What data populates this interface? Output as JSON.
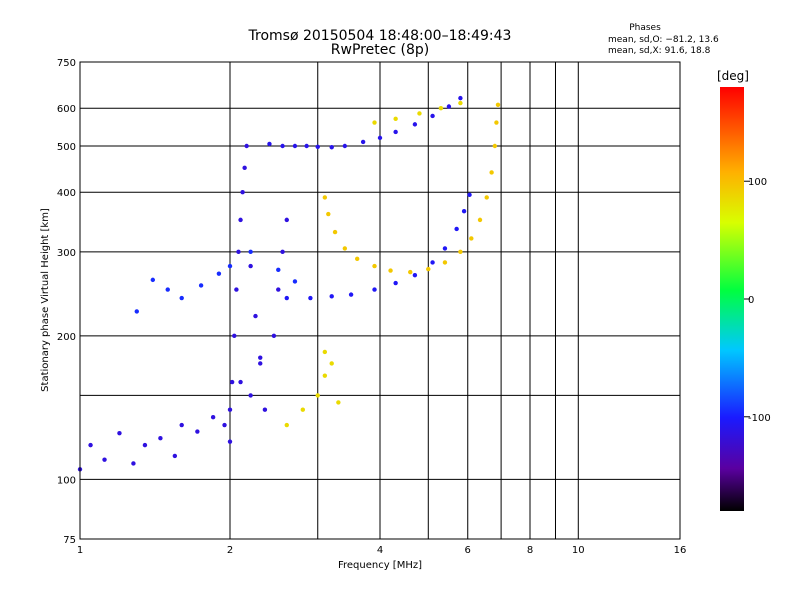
{
  "chart_data": {
    "type": "scatter",
    "title": "Tromsø 20150504 18:48:00–18:49:43",
    "subtitle": "RwPretec (8p)",
    "xlabel": "Frequency [MHz]",
    "ylabel": "Stationary phase Virtual Height [km]",
    "x_scale": "log",
    "y_scale": "log",
    "xlim": [
      1,
      16
    ],
    "ylim": [
      75,
      750
    ],
    "x_ticks": [
      1,
      2,
      4,
      6,
      8,
      10,
      16
    ],
    "x_minor_grid": [
      3,
      5,
      7,
      9
    ],
    "y_ticks": [
      75,
      100,
      200,
      300,
      400,
      500,
      600,
      750
    ],
    "y_minor_grid": [
      150
    ],
    "grid": true,
    "info": {
      "header": "Phases",
      "line1": "mean, sd,O: −81.2, 13.6",
      "line2": "mean, sd,X:  91.6, 18.8"
    },
    "colorbar": {
      "label": "[deg]",
      "range": [
        -180,
        180
      ],
      "ticks": [
        100,
        0,
        -100
      ],
      "placement": "right"
    },
    "series": [
      {
        "kind": "F-layer O-mode upper trace",
        "phase": -110,
        "points": [
          [
            2.4,
            505
          ],
          [
            2.55,
            500
          ],
          [
            2.7,
            500
          ],
          [
            2.85,
            500
          ],
          [
            3.0,
            498
          ],
          [
            3.2,
            497
          ],
          [
            3.4,
            500
          ],
          [
            3.7,
            510
          ],
          [
            4.0,
            520
          ],
          [
            4.3,
            535
          ],
          [
            4.7,
            555
          ],
          [
            5.1,
            578
          ],
          [
            5.5,
            605
          ],
          [
            5.8,
            630
          ]
        ]
      },
      {
        "kind": "F-layer O-mode lower trace",
        "phase": -105,
        "points": [
          [
            2.6,
            240
          ],
          [
            2.9,
            240
          ],
          [
            3.2,
            242
          ],
          [
            3.5,
            244
          ],
          [
            3.9,
            250
          ],
          [
            4.3,
            258
          ],
          [
            4.7,
            268
          ],
          [
            5.1,
            285
          ],
          [
            5.4,
            305
          ],
          [
            5.7,
            335
          ],
          [
            5.9,
            365
          ],
          [
            6.05,
            395
          ]
        ]
      },
      {
        "kind": "F-layer X-mode lower trace",
        "phase": 95,
        "points": [
          [
            3.1,
            390
          ],
          [
            3.15,
            360
          ],
          [
            3.25,
            330
          ],
          [
            3.4,
            305
          ],
          [
            3.6,
            290
          ],
          [
            3.9,
            280
          ],
          [
            4.2,
            274
          ],
          [
            4.6,
            272
          ],
          [
            5.0,
            276
          ],
          [
            5.4,
            285
          ],
          [
            5.8,
            300
          ],
          [
            6.1,
            320
          ],
          [
            6.35,
            350
          ],
          [
            6.55,
            390
          ],
          [
            6.7,
            440
          ],
          [
            6.8,
            500
          ],
          [
            6.85,
            560
          ],
          [
            6.9,
            610
          ]
        ]
      },
      {
        "kind": "F-layer X-mode upper trace",
        "phase": 85,
        "points": [
          [
            3.9,
            560
          ],
          [
            4.3,
            570
          ],
          [
            4.8,
            585
          ],
          [
            5.3,
            600
          ],
          [
            5.8,
            615
          ]
        ]
      },
      {
        "kind": "E/F1 spread echoes",
        "phase": -115,
        "points": [
          [
            1.0,
            105
          ],
          [
            1.05,
            118
          ],
          [
            1.12,
            110
          ],
          [
            1.2,
            125
          ],
          [
            1.28,
            108
          ],
          [
            1.35,
            118
          ],
          [
            1.45,
            122
          ],
          [
            1.55,
            112
          ],
          [
            1.6,
            130
          ],
          [
            1.72,
            126
          ],
          [
            1.85,
            135
          ],
          [
            1.95,
            130
          ],
          [
            2.0,
            140
          ],
          [
            2.1,
            160
          ],
          [
            2.2,
            150
          ],
          [
            2.3,
            175
          ]
        ]
      },
      {
        "kind": "E/F1 spread echoes (scattered)",
        "phase": -95,
        "points": [
          [
            1.3,
            225
          ],
          [
            1.4,
            262
          ],
          [
            1.5,
            250
          ],
          [
            1.6,
            240
          ],
          [
            1.75,
            255
          ],
          [
            1.9,
            270
          ],
          [
            2.0,
            280
          ],
          [
            2.2,
            300
          ],
          [
            2.5,
            275
          ],
          [
            2.7,
            260
          ]
        ]
      },
      {
        "kind": "Vertical spread near 2 MHz",
        "phase": -115,
        "points": [
          [
            2.0,
            120
          ],
          [
            2.02,
            160
          ],
          [
            2.04,
            200
          ],
          [
            2.06,
            250
          ],
          [
            2.08,
            300
          ],
          [
            2.1,
            350
          ],
          [
            2.12,
            400
          ],
          [
            2.14,
            450
          ],
          [
            2.16,
            500
          ],
          [
            2.2,
            280
          ],
          [
            2.25,
            220
          ],
          [
            2.3,
            180
          ],
          [
            2.35,
            140
          ],
          [
            2.45,
            200
          ],
          [
            2.5,
            250
          ],
          [
            2.55,
            300
          ],
          [
            2.6,
            350
          ]
        ]
      },
      {
        "kind": "Sporadic X-mode echoes",
        "phase": 85,
        "points": [
          [
            2.6,
            130
          ],
          [
            2.8,
            140
          ],
          [
            3.0,
            150
          ],
          [
            3.1,
            165
          ],
          [
            3.2,
            175
          ],
          [
            3.1,
            185
          ],
          [
            3.3,
            145
          ]
        ]
      }
    ]
  }
}
